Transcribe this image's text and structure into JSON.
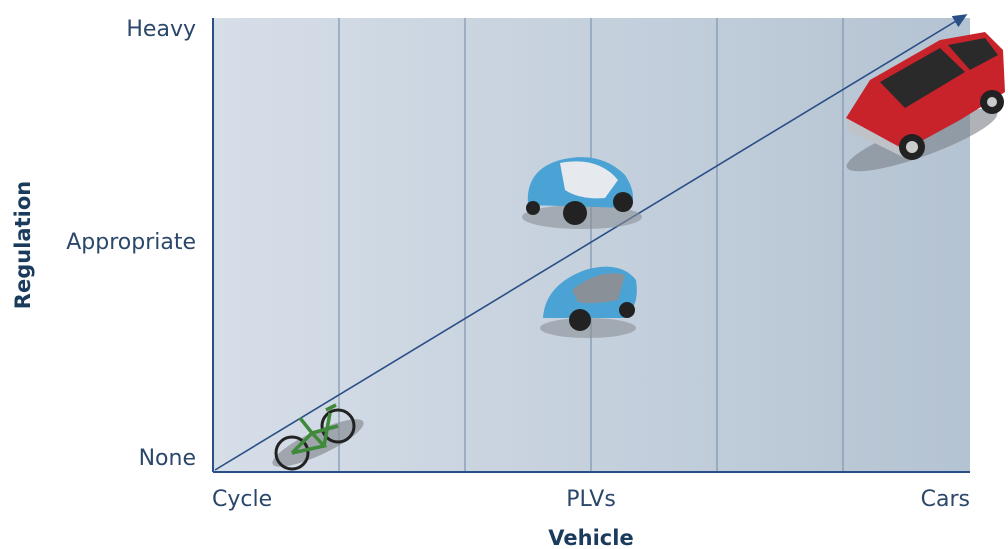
{
  "y_axis": {
    "title": "Regulation",
    "labels": [
      "Heavy",
      "Appropriate",
      "None"
    ]
  },
  "x_axis": {
    "title": "Vehicle",
    "labels": [
      "Cycle",
      "PLVs",
      "Cars"
    ]
  }
}
